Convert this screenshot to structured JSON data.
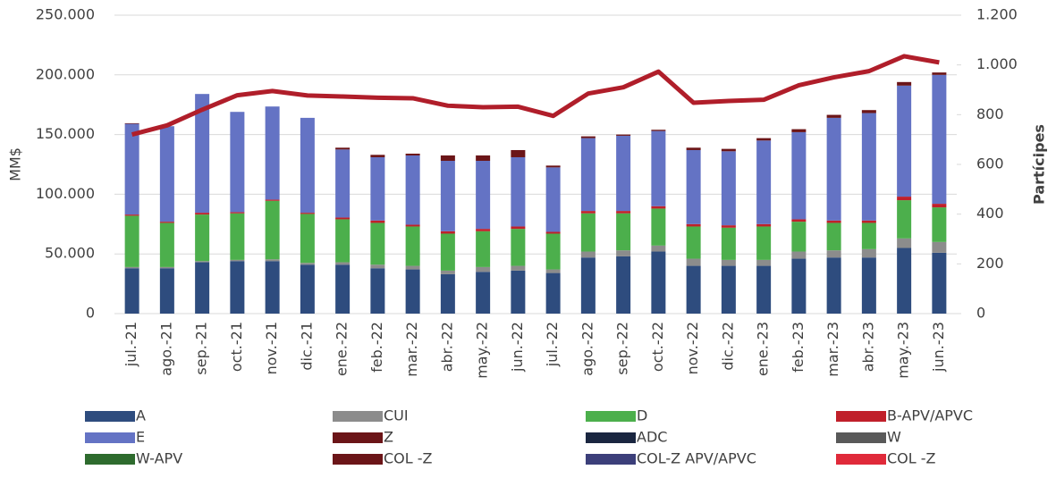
{
  "chart_data": {
    "type": "stacked-bar-line",
    "categories": [
      "jul.-21",
      "ago.-21",
      "sep.-21",
      "oct.-21",
      "nov.-21",
      "dic.-21",
      "ene.-22",
      "feb.-22",
      "mar.-22",
      "abr.-22",
      "may.-22",
      "jun.-22",
      "jul.-22",
      "ago.-22",
      "sep.-22",
      "oct.-22",
      "nov.-22",
      "dic.-22",
      "ene.-23",
      "feb.-23",
      "mar.-23",
      "abr.-23",
      "may.-23",
      "jun.-23"
    ],
    "ylabel": "MM$",
    "y2label": "Partícipes",
    "ylim": [
      0,
      250000
    ],
    "yticks": [
      0,
      {
        "value": 50000,
        "label": "50.000"
      },
      {
        "value": 100000,
        "label": "100.000"
      },
      {
        "value": 150000,
        "label": "150.000"
      },
      {
        "value": 200000,
        "label": "200.000"
      },
      {
        "value": 250000,
        "label": "250.000"
      }
    ],
    "y2lim": [
      0,
      1200
    ],
    "y2ticks": [
      0,
      200,
      400,
      600,
      800,
      {
        "value": 1000,
        "label": "1.000"
      },
      {
        "value": 1200,
        "label": "1.200"
      }
    ],
    "grid": true,
    "series": [
      {
        "name": "A",
        "color": "#2e4c7e",
        "values": [
          38000,
          38000,
          43000,
          44000,
          44000,
          41000,
          41000,
          38000,
          37000,
          33000,
          35000,
          36000,
          34000,
          47000,
          48000,
          52000,
          40000,
          40000,
          40000,
          46000,
          47000,
          47000,
          55000,
          51000
        ]
      },
      {
        "name": "CUI",
        "color": "#8c8c8c",
        "values": [
          1000,
          1000,
          1000,
          1000,
          1500,
          1500,
          2000,
          3000,
          3000,
          3000,
          4000,
          4000,
          3000,
          5000,
          5000,
          5000,
          6000,
          5000,
          5000,
          6000,
          6000,
          7000,
          8000,
          9000
        ]
      },
      {
        "name": "D",
        "color": "#4caf4c",
        "values": [
          43000,
          37000,
          39000,
          39000,
          49000,
          41000,
          36000,
          35000,
          33000,
          31000,
          30000,
          31000,
          30000,
          32000,
          31000,
          31000,
          27000,
          27000,
          28000,
          25000,
          23000,
          22000,
          32000,
          29000
        ]
      },
      {
        "name": "B-APV/APVC",
        "color": "#c0202a",
        "values": [
          1000,
          1000,
          1500,
          1000,
          1000,
          1000,
          1500,
          2000,
          1500,
          2000,
          2000,
          2000,
          1500,
          2000,
          2000,
          2000,
          2000,
          2000,
          2000,
          2000,
          2000,
          2000,
          3000,
          3000
        ]
      },
      {
        "name": "E",
        "color": "#6473c4",
        "values": [
          76000,
          80000,
          99500,
          84000,
          78000,
          79500,
          57000,
          53000,
          58000,
          59000,
          57000,
          58000,
          54000,
          61000,
          63000,
          63000,
          62000,
          62000,
          70000,
          73000,
          86000,
          90000,
          93000,
          108000
        ]
      },
      {
        "name": "Z",
        "color": "#6b1518",
        "values": [
          500,
          0,
          0,
          0,
          0,
          0,
          1500,
          2000,
          1500,
          4500,
          4500,
          6000,
          1500,
          1500,
          1000,
          1000,
          2000,
          2000,
          2000,
          2500,
          2500,
          2500,
          3000,
          2000
        ]
      },
      {
        "name": "ADC",
        "color": "#1a2640",
        "values": [
          0,
          0,
          0,
          0,
          0,
          0,
          0,
          0,
          0,
          0,
          0,
          0,
          0,
          0,
          0,
          0,
          0,
          0,
          0,
          0,
          0,
          0,
          0,
          0
        ]
      },
      {
        "name": "W",
        "color": "#595959",
        "values": [
          0,
          0,
          0,
          0,
          0,
          0,
          0,
          0,
          0,
          0,
          0,
          0,
          0,
          0,
          0,
          0,
          0,
          0,
          0,
          0,
          0,
          0,
          0,
          0
        ]
      },
      {
        "name": "W-APV",
        "color": "#2e6b2e",
        "values": [
          0,
          0,
          0,
          0,
          0,
          0,
          0,
          0,
          0,
          0,
          0,
          0,
          0,
          0,
          0,
          0,
          0,
          0,
          0,
          0,
          0,
          0,
          0,
          0
        ]
      },
      {
        "name": "COL -Z",
        "color": "#6b1518",
        "values": [
          0,
          0,
          0,
          0,
          0,
          0,
          0,
          0,
          0,
          0,
          0,
          0,
          0,
          0,
          0,
          0,
          0,
          0,
          0,
          0,
          0,
          0,
          0,
          0
        ]
      },
      {
        "name": "COL-Z APV/APVC",
        "color": "#3c3f7a",
        "values": [
          0,
          0,
          0,
          0,
          0,
          0,
          0,
          0,
          0,
          0,
          0,
          0,
          0,
          0,
          0,
          0,
          0,
          0,
          0,
          0,
          0,
          0,
          0,
          0
        ]
      },
      {
        "name": "COL -Z",
        "color": "#e02a3a",
        "values": [
          0,
          0,
          0,
          0,
          0,
          0,
          0,
          0,
          0,
          0,
          0,
          0,
          0,
          0,
          0,
          0,
          0,
          0,
          0,
          0,
          0,
          0,
          0,
          0
        ]
      },
      {
        "type": "line",
        "axis": "y2",
        "color": "#b01e2a",
        "values": [
          720,
          757,
          820,
          878,
          895,
          877,
          873,
          868,
          866,
          836,
          830,
          832,
          795,
          885,
          910,
          973,
          848,
          855,
          860,
          918,
          950,
          975,
          1035,
          1010
        ]
      }
    ]
  }
}
